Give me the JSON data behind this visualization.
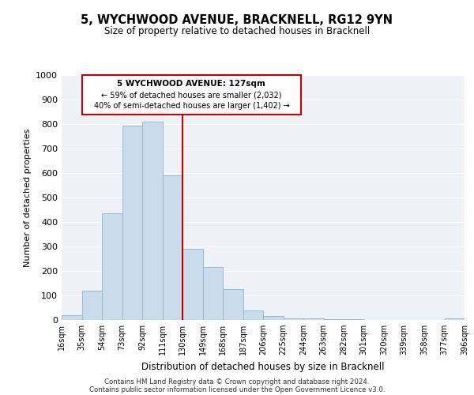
{
  "title": "5, WYCHWOOD AVENUE, BRACKNELL, RG12 9YN",
  "subtitle": "Size of property relative to detached houses in Bracknell",
  "xlabel": "Distribution of detached houses by size in Bracknell",
  "ylabel": "Number of detached properties",
  "bar_color": "#c8dcec",
  "bar_edge_color": "#9ab8d0",
  "vline_x": 130,
  "vline_color": "#cc0000",
  "bin_edges": [
    16,
    35,
    54,
    73,
    92,
    111,
    130,
    149,
    168,
    187,
    206,
    225,
    244,
    263,
    282,
    301,
    320,
    339,
    358,
    377,
    396
  ],
  "bin_labels": [
    "16sqm",
    "35sqm",
    "54sqm",
    "73sqm",
    "92sqm",
    "111sqm",
    "130sqm",
    "149sqm",
    "168sqm",
    "187sqm",
    "206sqm",
    "225sqm",
    "244sqm",
    "263sqm",
    "282sqm",
    "301sqm",
    "320sqm",
    "339sqm",
    "358sqm",
    "377sqm",
    "396sqm"
  ],
  "bar_heights": [
    18,
    120,
    435,
    795,
    810,
    590,
    290,
    215,
    125,
    40,
    15,
    8,
    5,
    3,
    2,
    0,
    0,
    0,
    0,
    5
  ],
  "ylim": [
    0,
    1000
  ],
  "yticks": [
    0,
    100,
    200,
    300,
    400,
    500,
    600,
    700,
    800,
    900,
    1000
  ],
  "annotation_title": "5 WYCHWOOD AVENUE: 127sqm",
  "annotation_line1": "← 59% of detached houses are smaller (2,032)",
  "annotation_line2": "40% of semi-detached houses are larger (1,402) →",
  "footnote1": "Contains HM Land Registry data © Crown copyright and database right 2024.",
  "footnote2": "Contains public sector information licensed under the Open Government Licence v3.0.",
  "bg_color": "#ffffff",
  "plot_bg_color": "#eef2f7",
  "grid_color": "#ffffff"
}
